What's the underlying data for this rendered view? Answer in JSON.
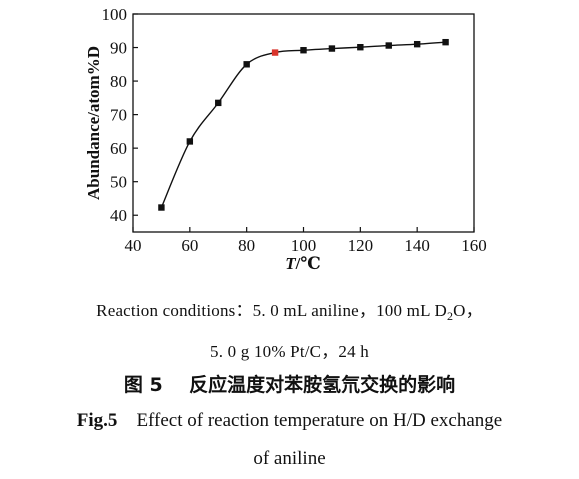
{
  "chart_data": {
    "type": "line",
    "xlabel_italic": "T",
    "xlabel_unit": "/℃",
    "ylabel": "Abundance/atom%D",
    "xlim": [
      40,
      160
    ],
    "ylim": [
      35,
      100
    ],
    "xticks": [
      40,
      60,
      80,
      100,
      120,
      140,
      160
    ],
    "yticks": [
      40,
      50,
      60,
      70,
      80,
      90,
      100
    ],
    "grid": false,
    "series": [
      {
        "x": [
          50,
          60,
          70,
          80,
          90,
          100,
          110,
          120,
          130,
          140,
          150
        ],
        "y": [
          42.3,
          62.0,
          73.5,
          85.0,
          88.5,
          89.2,
          89.7,
          90.1,
          90.6,
          91.0,
          91.6
        ],
        "marker": "square",
        "color": "#111111",
        "highlight_index": 4,
        "highlight_color": "#d9342b"
      }
    ]
  },
  "caption": {
    "conditions_line1": "Reaction conditions：5. 0 mL aniline，100 mL D",
    "conditions_line1_sub": "2",
    "conditions_line1_end": "O，",
    "conditions_line2": "5. 0 g 10% Pt/C，24 h",
    "cn_label": "图 5",
    "cn_title": "反应温度对苯胺氢氘交换的影响",
    "en_label": "Fig.5",
    "en_title_line1": "Effect of reaction temperature on H/D exchange",
    "en_title_line2": "of aniline"
  }
}
